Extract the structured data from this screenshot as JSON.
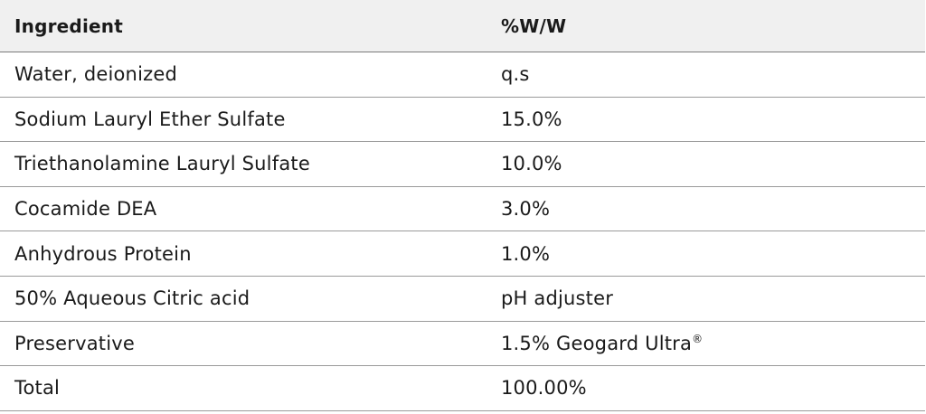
{
  "table": {
    "headers": {
      "ingredient": "Ingredient",
      "ww": "%W/W"
    },
    "rows": [
      {
        "ingredient": "Water, deionized",
        "ww": "q.s",
        "ww_mark": ""
      },
      {
        "ingredient": "Sodium Lauryl Ether Sulfate",
        "ww": "15.0%",
        "ww_mark": ""
      },
      {
        "ingredient": "Triethanolamine Lauryl Sulfate",
        "ww": "10.0%",
        "ww_mark": ""
      },
      {
        "ingredient": "Cocamide DEA",
        "ww": "3.0%",
        "ww_mark": ""
      },
      {
        "ingredient": "Anhydrous Protein",
        "ww": "1.0%",
        "ww_mark": ""
      },
      {
        "ingredient": "50% Aqueous Citric acid",
        "ww": "pH adjuster",
        "ww_mark": ""
      },
      {
        "ingredient": "Preservative",
        "ww": "1.5% Geogard Ultra",
        "ww_mark": "®"
      },
      {
        "ingredient": "Total",
        "ww": "100.00%",
        "ww_mark": ""
      }
    ]
  }
}
